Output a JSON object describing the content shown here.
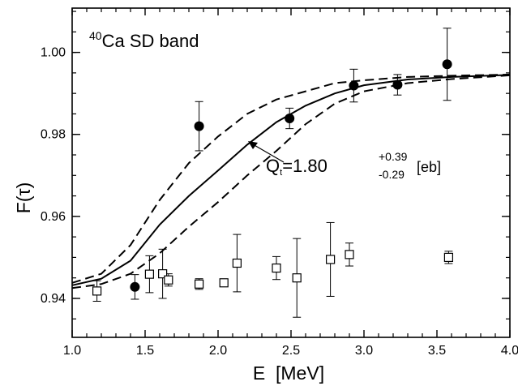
{
  "chart_data": {
    "type": "scatter",
    "title": "",
    "xlabel": "E  [MeV]",
    "ylabel": "F(τ)",
    "xlim": [
      1.0,
      4.0
    ],
    "ylim": [
      0.9305,
      1.0108
    ],
    "x_ticks": [
      1.0,
      1.5,
      2.0,
      2.5,
      3.0,
      3.5,
      4.0
    ],
    "x_tick_labels": [
      "1.0",
      "1.5",
      "2.0",
      "2.5",
      "3.0",
      "3.5",
      "4.0"
    ],
    "y_ticks": [
      0.94,
      0.96,
      0.98,
      1.0
    ],
    "y_tick_labels": [
      "0.94",
      "0.96",
      "0.98",
      "1.00"
    ],
    "panel_label": {
      "sup": "40",
      "main": "Ca SD band"
    },
    "annotation": {
      "q": "Q",
      "q_sub": "t",
      "eq": "=1.80",
      "sup": "+0.39",
      "sub": "-0.29",
      "unit": "[eb]"
    },
    "series": [
      {
        "marker": "filled-circle",
        "color": "#000000",
        "points": [
          {
            "x": 1.43,
            "y": 0.9428,
            "err": 0.003
          },
          {
            "x": 1.87,
            "y": 0.982,
            "err": 0.006
          },
          {
            "x": 2.49,
            "y": 0.9839,
            "err": 0.0025
          },
          {
            "x": 2.93,
            "y": 0.9919,
            "err": 0.004
          },
          {
            "x": 3.23,
            "y": 0.9921,
            "err": 0.0025
          },
          {
            "x": 3.57,
            "y": 0.9971,
            "err": 0.0088
          }
        ]
      },
      {
        "marker": "open-square",
        "color": "#000000",
        "points": [
          {
            "x": 1.17,
            "y": 0.9418,
            "err": 0.0025
          },
          {
            "x": 1.53,
            "y": 0.9459,
            "err": 0.0045
          },
          {
            "x": 1.62,
            "y": 0.946,
            "err": 0.006
          },
          {
            "x": 1.66,
            "y": 0.9445,
            "err": 0.0015
          },
          {
            "x": 1.87,
            "y": 0.9435,
            "err": 0.0013
          },
          {
            "x": 2.04,
            "y": 0.9438,
            "err": 0.0
          },
          {
            "x": 2.13,
            "y": 0.9486,
            "err": 0.007
          },
          {
            "x": 2.4,
            "y": 0.9474,
            "err": 0.0028
          },
          {
            "x": 2.54,
            "y": 0.945,
            "err": 0.0096
          },
          {
            "x": 2.77,
            "y": 0.9495,
            "err": 0.009
          },
          {
            "x": 2.9,
            "y": 0.9507,
            "err": 0.0028
          },
          {
            "x": 3.58,
            "y": 0.95,
            "err": 0.0015
          }
        ]
      },
      {
        "style": "solid",
        "color": "#000000",
        "points": [
          [
            1.0,
            0.9432
          ],
          [
            1.2,
            0.9448
          ],
          [
            1.4,
            0.9492
          ],
          [
            1.6,
            0.958
          ],
          [
            1.8,
            0.965
          ],
          [
            2.0,
            0.9712
          ],
          [
            2.2,
            0.9775
          ],
          [
            2.4,
            0.983
          ],
          [
            2.6,
            0.987
          ],
          [
            2.8,
            0.99
          ],
          [
            3.0,
            0.992
          ],
          [
            3.3,
            0.9934
          ],
          [
            3.6,
            0.994
          ],
          [
            4.0,
            0.9945
          ]
        ]
      },
      {
        "style": "dashed",
        "color": "#000000",
        "points": [
          [
            1.0,
            0.9438
          ],
          [
            1.2,
            0.946
          ],
          [
            1.4,
            0.953
          ],
          [
            1.6,
            0.964
          ],
          [
            1.8,
            0.973
          ],
          [
            2.0,
            0.9795
          ],
          [
            2.2,
            0.985
          ],
          [
            2.4,
            0.9885
          ],
          [
            2.6,
            0.9905
          ],
          [
            2.8,
            0.9925
          ],
          [
            3.0,
            0.9932
          ],
          [
            3.3,
            0.994
          ],
          [
            3.6,
            0.9943
          ],
          [
            4.0,
            0.9946
          ]
        ]
      },
      {
        "style": "dashed",
        "color": "#000000",
        "points": [
          [
            1.0,
            0.9425
          ],
          [
            1.2,
            0.9435
          ],
          [
            1.4,
            0.946
          ],
          [
            1.6,
            0.951
          ],
          [
            1.8,
            0.9575
          ],
          [
            2.0,
            0.9635
          ],
          [
            2.2,
            0.97
          ],
          [
            2.4,
            0.976
          ],
          [
            2.6,
            0.9825
          ],
          [
            2.8,
            0.9875
          ],
          [
            3.0,
            0.9905
          ],
          [
            3.3,
            0.9925
          ],
          [
            3.6,
            0.9935
          ],
          [
            4.0,
            0.9944
          ]
        ]
      }
    ],
    "grid": false,
    "legend": "none"
  }
}
